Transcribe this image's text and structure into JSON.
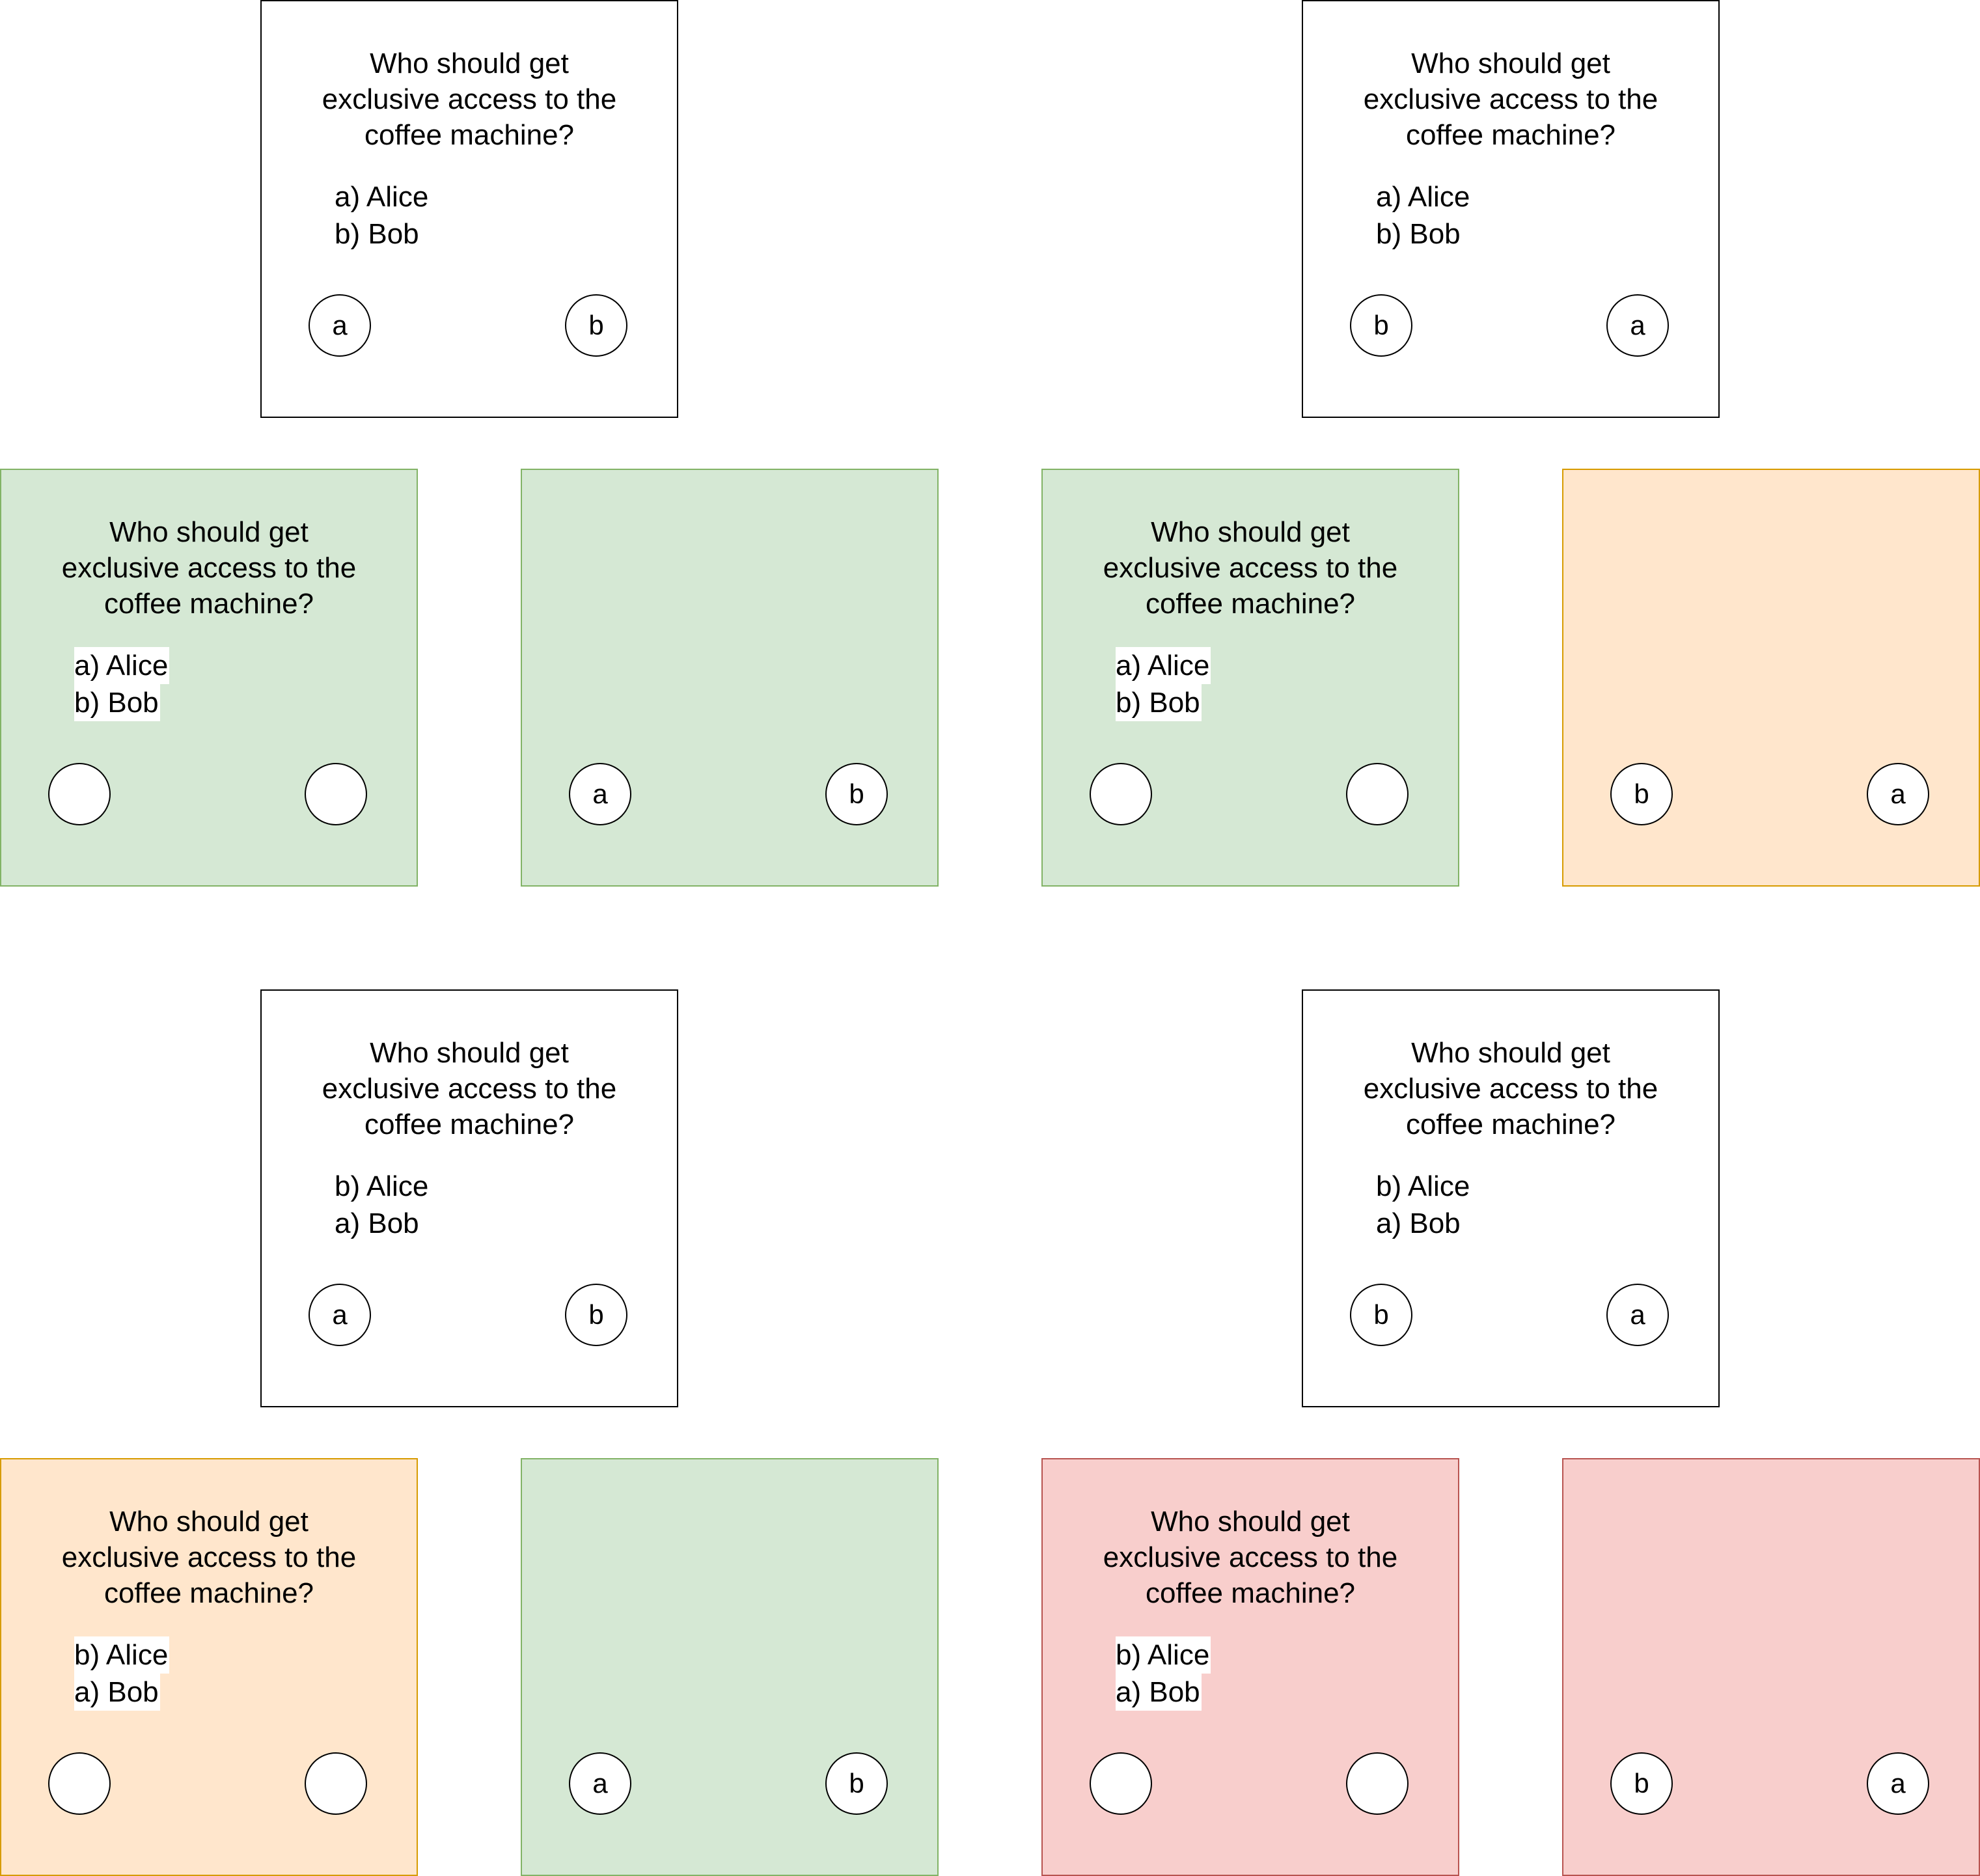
{
  "question_lines": [
    "Who should get",
    "exclusive access to the",
    "coffee machine?"
  ],
  "colors": {
    "green_fill": "#d5e8d4",
    "green_stroke": "#82b366",
    "orange_fill": "#ffe6cc",
    "orange_stroke": "#d79b00",
    "red_fill": "#f8cecc",
    "red_stroke": "#b85450"
  },
  "cards": [
    {
      "id": "top-left-prompt",
      "color": "white",
      "options": [
        "a) Alice",
        "b) Bob"
      ],
      "buttons": [
        "a",
        "b"
      ]
    },
    {
      "id": "top-right-prompt",
      "color": "white",
      "options": [
        "a) Alice",
        "b) Bob"
      ],
      "buttons": [
        "b",
        "a"
      ]
    },
    {
      "id": "row2-question-1",
      "color": "green",
      "options": [
        "a) Alice",
        "b) Bob"
      ],
      "buttons": [
        "",
        ""
      ]
    },
    {
      "id": "row2-buttons-1",
      "color": "green",
      "options": [],
      "buttons": [
        "a",
        "b"
      ]
    },
    {
      "id": "row2-question-2",
      "color": "green",
      "options": [
        "a) Alice",
        "b) Bob"
      ],
      "buttons": [
        "",
        ""
      ]
    },
    {
      "id": "row2-buttons-2",
      "color": "orange",
      "options": [],
      "buttons": [
        "b",
        "a"
      ]
    },
    {
      "id": "bottom-left-prompt",
      "color": "white",
      "options": [
        "b) Alice",
        "a) Bob"
      ],
      "buttons": [
        "a",
        "b"
      ]
    },
    {
      "id": "bottom-right-prompt",
      "color": "white",
      "options": [
        "b) Alice",
        "a) Bob"
      ],
      "buttons": [
        "b",
        "a"
      ]
    },
    {
      "id": "row4-question-1",
      "color": "orange",
      "options": [
        "b) Alice",
        "a) Bob"
      ],
      "buttons": [
        "",
        ""
      ]
    },
    {
      "id": "row4-buttons-1",
      "color": "green",
      "options": [],
      "buttons": [
        "a",
        "b"
      ]
    },
    {
      "id": "row4-question-2",
      "color": "red",
      "options": [
        "b) Alice",
        "a) Bob"
      ],
      "buttons": [
        "",
        ""
      ]
    },
    {
      "id": "row4-buttons-2",
      "color": "red",
      "options": [],
      "buttons": [
        "b",
        "a"
      ]
    }
  ]
}
